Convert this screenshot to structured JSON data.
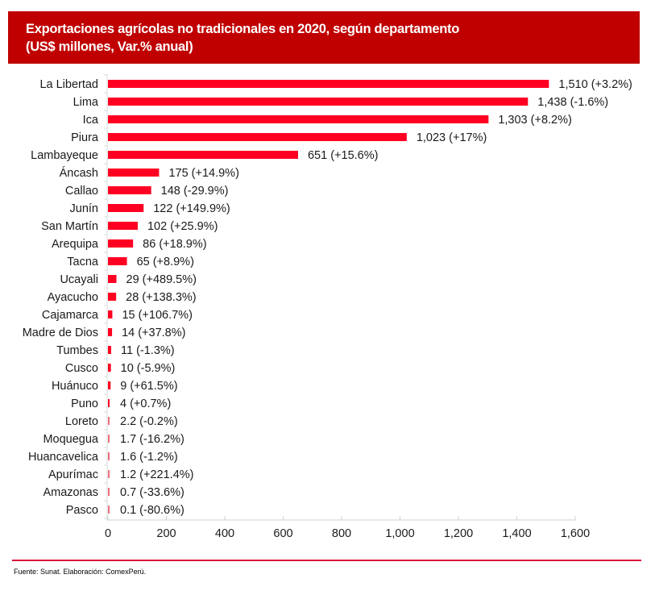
{
  "header": {
    "title_line1": "Exportaciones agrícolas no tradicionales en 2020, según departamento",
    "title_line2": "(US$ millones, Var.% anual)"
  },
  "footer": {
    "source": "Fuente: Sunat. Elaboración: ComexPerú."
  },
  "colors": {
    "header_bg": "#c00000",
    "bar": "#ff0022",
    "bar_small": "#f07080",
    "footer_line": "#d6173a"
  },
  "chart_data": {
    "type": "bar",
    "orientation": "horizontal",
    "title": "Exportaciones agrícolas no tradicionales en 2020, según departamento (US$ millones, Var.% anual)",
    "xlabel": "",
    "ylabel": "",
    "xlim": [
      0,
      1600
    ],
    "xticks": [
      0,
      200,
      400,
      600,
      800,
      1000,
      1200,
      1400,
      1600
    ],
    "xtick_labels": [
      "0",
      "200",
      "400",
      "600",
      "800",
      "1,000",
      "1,200",
      "1,400",
      "1,600"
    ],
    "grid": false,
    "legend": "none",
    "categories": [
      "La Libertad",
      "Lima",
      "Ica",
      "Piura",
      "Lambayeque",
      "Áncash",
      "Callao",
      "Junín",
      "San Martín",
      "Arequipa",
      "Tacna",
      "Ucayali",
      "Ayacucho",
      "Cajamarca",
      "Madre de Dios",
      "Tumbes",
      "Cusco",
      "Huánuco",
      "Puno",
      "Loreto",
      "Moquegua",
      "Huancavelica",
      "Apurímac",
      "Amazonas",
      "Pasco"
    ],
    "values": [
      1510,
      1438,
      1303,
      1023,
      651,
      175,
      148,
      122,
      102,
      86,
      65,
      29,
      28,
      15,
      14,
      11,
      10,
      9,
      4,
      2.2,
      1.7,
      1.6,
      1.2,
      0.7,
      0.1
    ],
    "variation_pct": [
      3.2,
      -1.6,
      8.2,
      17,
      15.6,
      14.9,
      -29.9,
      149.9,
      25.9,
      18.9,
      8.9,
      489.5,
      138.3,
      106.7,
      37.8,
      -1.3,
      -5.9,
      61.5,
      0.7,
      -0.2,
      -16.2,
      -1.2,
      221.4,
      -33.6,
      -80.6
    ],
    "data_labels": [
      "1,510 (+3.2%)",
      "1,438 (-1.6%)",
      "1,303 (+8.2%)",
      "1,023 (+17%)",
      "651 (+15.6%)",
      "175 (+14.9%)",
      "148 (-29.9%)",
      "122 (+149.9%)",
      "102 (+25.9%)",
      "86 (+18.9%)",
      "65 (+8.9%)",
      "29 (+489.5%)",
      "28 (+138.3%)",
      "15 (+106.7%)",
      "14 (+37.8%)",
      "11 (-1.3%)",
      "10 (-5.9%)",
      "9 (+61.5%)",
      "4 (+0.7%)",
      "2.2 (-0.2%)",
      "1.7 (-16.2%)",
      "1.6 (-1.2%)",
      "1.2 (+221.4%)",
      "0.7 (-33.6%)",
      "0.1 (-80.6%)"
    ]
  }
}
